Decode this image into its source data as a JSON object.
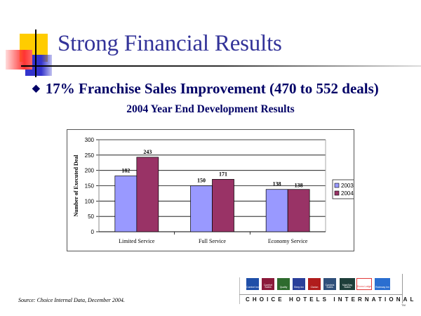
{
  "slide": {
    "title": "Strong Financial Results",
    "bullet": "17% Franchise Sales Improvement (470 to 552 deals)",
    "chart_heading": "2004 Year End Development Results",
    "source": "Source: Choice Internal Data, December 2004."
  },
  "chart_data": {
    "type": "bar",
    "title": "2004 Year End Development Results",
    "xlabel": "",
    "ylabel": "Number of Executed Deal",
    "categories": [
      "Limited Service",
      "Full Service",
      "Economy Service"
    ],
    "series": [
      {
        "name": "2003",
        "values": [
          182,
          150,
          138
        ],
        "color": "#9999ff"
      },
      {
        "name": "2004",
        "values": [
          243,
          171,
          138
        ],
        "color": "#993366"
      }
    ],
    "ylim": [
      0,
      300
    ],
    "yticks": [
      0,
      50,
      100,
      150,
      200,
      250,
      300
    ],
    "grid": true,
    "legend_position": "right",
    "data_labels": true
  },
  "footer": {
    "brand_line": "CHOICE HOTELS INTERNATIONAL",
    "trademark": "TM",
    "logos": [
      {
        "name": "Comfort Inn",
        "label": "Comfort Inn",
        "color": "#1f4fa8"
      },
      {
        "name": "Comfort Suites",
        "label": "Comfort Suites",
        "color": "#8b1a3a"
      },
      {
        "name": "Quality",
        "label": "Quality",
        "color": "#2e6b2e"
      },
      {
        "name": "Sleep Inn",
        "label": "Sleep Inn",
        "color": "#2a3f9a"
      },
      {
        "name": "Clarion",
        "label": "Clarion",
        "color": "#b01c1c"
      },
      {
        "name": "Cambria Suites",
        "label": "Cambria Suites",
        "color": "#2f4f7a"
      },
      {
        "name": "MainStay Suites",
        "label": "MainStay Suites",
        "color": "#1e3f3a"
      },
      {
        "name": "Econo Lodge",
        "label": "Econo Lodge",
        "color": "#e23a3a"
      },
      {
        "name": "Rodeway Inn",
        "label": "Rodeway Inn",
        "color": "#2b6ed0"
      }
    ]
  }
}
